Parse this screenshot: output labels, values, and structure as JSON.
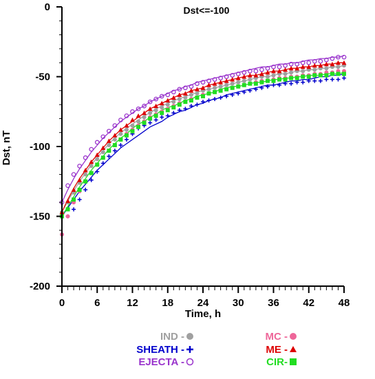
{
  "chart_data": {
    "type": "scatter",
    "title": "Dst<=-100",
    "xlabel": "Time, h",
    "ylabel": "Dst, nT",
    "xlim": [
      0,
      48
    ],
    "ylim": [
      -200,
      0
    ],
    "xticks": [
      0,
      6,
      12,
      18,
      24,
      30,
      36,
      42,
      48
    ],
    "yticks": [
      0,
      -50,
      -100,
      -150,
      -200
    ],
    "grid": false,
    "legend_position": "bottom",
    "series": [
      {
        "name": "IND - ●",
        "legend_label": "IND -",
        "marker": "circle-filled",
        "color": "#a0a0a0",
        "x": [
          0,
          1,
          2,
          3,
          4,
          5,
          6,
          7,
          8,
          9,
          10,
          11,
          12,
          13,
          14,
          15,
          16,
          17,
          18,
          19,
          20,
          21,
          22,
          23,
          24,
          25,
          26,
          27,
          28,
          29,
          30,
          31,
          32,
          33,
          34,
          35,
          36,
          37,
          38,
          39,
          40,
          41,
          42,
          43,
          44,
          45,
          46,
          47,
          48
        ],
        "y": [
          -147,
          -140,
          -133,
          -126,
          -120,
          -114,
          -109,
          -104,
          -99,
          -95,
          -91,
          -88,
          -85,
          -82,
          -79,
          -76,
          -74,
          -72,
          -70,
          -68,
          -66,
          -65,
          -63,
          -62,
          -60,
          -59,
          -58,
          -57,
          -56,
          -55,
          -54,
          -53,
          -52,
          -51,
          -50,
          -50,
          -49,
          -48,
          -48,
          -47,
          -46,
          -46,
          -45,
          -45,
          -44,
          -44,
          -43,
          -43,
          -42
        ],
        "fit_y": [
          -147,
          -139,
          -132,
          -125,
          -119,
          -113,
          -108,
          -103,
          -98,
          -94,
          -90,
          -87,
          -84,
          -81,
          -78,
          -76,
          -73,
          -71,
          -69,
          -67,
          -66,
          -64,
          -63,
          -61,
          -60,
          -59,
          -58,
          -57,
          -56,
          -55,
          -54,
          -53,
          -52,
          -51,
          -50,
          -50,
          -49,
          -48,
          -48,
          -47,
          -46,
          -46,
          -45,
          -45,
          -44,
          -44,
          -43,
          -43,
          -42
        ]
      },
      {
        "name": "SHEATH - +",
        "legend_label": "SHEATH -",
        "marker": "plus",
        "color": "#0000cc",
        "x": [
          0,
          1,
          2,
          3,
          4,
          5,
          6,
          7,
          8,
          9,
          10,
          11,
          12,
          13,
          14,
          15,
          16,
          17,
          18,
          19,
          20,
          21,
          22,
          23,
          24,
          25,
          26,
          27,
          28,
          29,
          30,
          31,
          32,
          33,
          34,
          35,
          36,
          37,
          38,
          39,
          40,
          41,
          42,
          43,
          44,
          45,
          46,
          47,
          48
        ],
        "y": [
          -150,
          -150,
          -145,
          -138,
          -131,
          -124,
          -118,
          -112,
          -107,
          -103,
          -99,
          -95,
          -91,
          -87,
          -85,
          -83,
          -81,
          -79,
          -78,
          -76,
          -74,
          -73,
          -71,
          -70,
          -68,
          -67,
          -66,
          -65,
          -64,
          -63,
          -62,
          -61,
          -60,
          -59,
          -58,
          -57,
          -56,
          -56,
          -55,
          -55,
          -54,
          -54,
          -53,
          -53,
          -53,
          -52,
          -52,
          -52,
          -51
        ],
        "fit_y": [
          -150,
          -144,
          -138,
          -132,
          -127,
          -122,
          -117,
          -113,
          -109,
          -105,
          -101,
          -98,
          -95,
          -92,
          -89,
          -86,
          -84,
          -82,
          -79,
          -77,
          -75,
          -74,
          -72,
          -70,
          -69,
          -67,
          -66,
          -65,
          -63,
          -62,
          -61,
          -60,
          -59,
          -58,
          -57,
          -56,
          -56,
          -55,
          -54,
          -53,
          -53,
          -52,
          -52,
          -51,
          -50,
          -50,
          -49,
          -49,
          -48
        ]
      },
      {
        "name": "EJECTA - ○",
        "legend_label": "EJECTA -",
        "marker": "circle-open",
        "color": "#9933cc",
        "x": [
          0,
          1,
          2,
          3,
          4,
          5,
          6,
          7,
          8,
          9,
          10,
          11,
          12,
          13,
          14,
          15,
          16,
          17,
          18,
          19,
          20,
          21,
          22,
          23,
          24,
          25,
          26,
          27,
          28,
          29,
          30,
          31,
          32,
          33,
          34,
          35,
          36,
          37,
          38,
          39,
          40,
          41,
          42,
          43,
          44,
          45,
          46,
          47,
          48
        ],
        "y": [
          -140,
          -128,
          -120,
          -114,
          -108,
          -102,
          -97,
          -93,
          -89,
          -85,
          -81,
          -78,
          -75,
          -73,
          -71,
          -68,
          -66,
          -64,
          -63,
          -61,
          -59,
          -58,
          -57,
          -55,
          -54,
          -53,
          -52,
          -51,
          -50,
          -49,
          -48,
          -47,
          -46,
          -46,
          -45,
          -44,
          -43,
          -43,
          -42,
          -41,
          -41,
          -40,
          -40,
          -39,
          -39,
          -38,
          -37,
          -36,
          -36
        ],
        "fit_y": [
          -140,
          -131,
          -123,
          -116,
          -110,
          -104,
          -99,
          -94,
          -90,
          -86,
          -82,
          -79,
          -76,
          -73,
          -71,
          -68,
          -66,
          -64,
          -62,
          -60,
          -59,
          -57,
          -56,
          -54,
          -53,
          -52,
          -51,
          -50,
          -49,
          -48,
          -47,
          -46,
          -45,
          -44,
          -43,
          -43,
          -42,
          -41,
          -41,
          -40,
          -40,
          -39,
          -38,
          -38,
          -37,
          -37,
          -36,
          -36,
          -35
        ]
      },
      {
        "name": "MC - ●",
        "legend_label": "MC -",
        "marker": "circle-filled",
        "color": "#ee6699",
        "x": [
          0,
          1,
          2,
          3,
          4,
          5,
          6,
          7,
          8,
          9,
          10,
          11,
          12,
          13,
          14,
          15,
          16,
          17,
          18,
          19,
          20,
          21,
          22,
          23,
          24,
          25,
          26,
          27,
          28,
          29,
          30,
          31,
          32,
          33,
          34,
          35,
          36,
          37,
          38,
          39,
          40,
          41,
          42,
          43,
          44,
          45,
          46,
          47,
          48
        ],
        "y": [
          -163,
          -150,
          -140,
          -132,
          -125,
          -119,
          -113,
          -108,
          -103,
          -99,
          -95,
          -91,
          -88,
          -85,
          -82,
          -79,
          -77,
          -75,
          -73,
          -71,
          -69,
          -68,
          -66,
          -65,
          -63,
          -62,
          -61,
          -60,
          -59,
          -58,
          -57,
          -56,
          -55,
          -54,
          -53,
          -53,
          -52,
          -51,
          -51,
          -50,
          -50,
          -49,
          -49,
          -48,
          -48,
          -47,
          -47,
          -46,
          -46
        ],
        "fit_y": []
      },
      {
        "name": "ME - ▲",
        "legend_label": "ME -",
        "marker": "triangle",
        "color": "#dd0000",
        "x": [
          0,
          1,
          2,
          3,
          4,
          5,
          6,
          7,
          8,
          9,
          10,
          11,
          12,
          13,
          14,
          15,
          16,
          17,
          18,
          19,
          20,
          21,
          22,
          23,
          24,
          25,
          26,
          27,
          28,
          29,
          30,
          31,
          32,
          33,
          34,
          35,
          36,
          37,
          38,
          39,
          40,
          41,
          42,
          43,
          44,
          45,
          46,
          47,
          48
        ],
        "y": [
          -147,
          -139,
          -131,
          -124,
          -117,
          -111,
          -106,
          -101,
          -96,
          -92,
          -88,
          -85,
          -81,
          -78,
          -76,
          -73,
          -71,
          -69,
          -67,
          -65,
          -63,
          -62,
          -60,
          -59,
          -58,
          -56,
          -55,
          -54,
          -53,
          -52,
          -51,
          -50,
          -49,
          -49,
          -48,
          -47,
          -46,
          -46,
          -45,
          -44,
          -44,
          -43,
          -43,
          -42,
          -42,
          -41,
          -41,
          -40,
          -40
        ],
        "fit_y": [
          -147,
          -138,
          -130,
          -123,
          -117,
          -111,
          -106,
          -101,
          -96,
          -92,
          -88,
          -85,
          -82,
          -79,
          -76,
          -73,
          -71,
          -69,
          -67,
          -65,
          -63,
          -62,
          -60,
          -59,
          -58,
          -56,
          -55,
          -54,
          -53,
          -52,
          -51,
          -50,
          -49,
          -49,
          -48,
          -47,
          -46,
          -46,
          -45,
          -44,
          -44,
          -43,
          -43,
          -42,
          -42,
          -41,
          -41,
          -40,
          -40
        ]
      },
      {
        "name": "CIR-■",
        "legend_label": "CIR-",
        "marker": "square",
        "color": "#22dd22",
        "x": [
          0,
          1,
          2,
          3,
          4,
          5,
          6,
          7,
          8,
          9,
          10,
          11,
          12,
          13,
          14,
          15,
          16,
          17,
          18,
          19,
          20,
          21,
          22,
          23,
          24,
          25,
          26,
          27,
          28,
          29,
          30,
          31,
          32,
          33,
          34,
          35,
          36,
          37,
          38,
          39,
          40,
          41,
          42,
          43,
          44,
          45,
          46,
          47,
          48
        ],
        "y": [
          -150,
          -145,
          -138,
          -131,
          -125,
          -119,
          -113,
          -108,
          -103,
          -99,
          -95,
          -92,
          -89,
          -86,
          -83,
          -80,
          -78,
          -76,
          -74,
          -72,
          -70,
          -68,
          -67,
          -65,
          -64,
          -62,
          -61,
          -60,
          -59,
          -58,
          -57,
          -56,
          -55,
          -55,
          -54,
          -53,
          -53,
          -52,
          -52,
          -51,
          -51,
          -50,
          -50,
          -49,
          -49,
          -49,
          -48,
          -48,
          -48
        ],
        "fit_y": [
          -150,
          -143,
          -136,
          -129,
          -123,
          -117,
          -112,
          -107,
          -102,
          -98,
          -94,
          -91,
          -87,
          -84,
          -82,
          -79,
          -77,
          -74,
          -72,
          -71,
          -69,
          -67,
          -66,
          -64,
          -63,
          -62,
          -61,
          -59,
          -58,
          -57,
          -57,
          -56,
          -55,
          -54,
          -54,
          -53,
          -52,
          -52,
          -51,
          -51,
          -50,
          -50,
          -49,
          -49,
          -49,
          -48,
          -48,
          -48,
          -47
        ]
      }
    ]
  }
}
